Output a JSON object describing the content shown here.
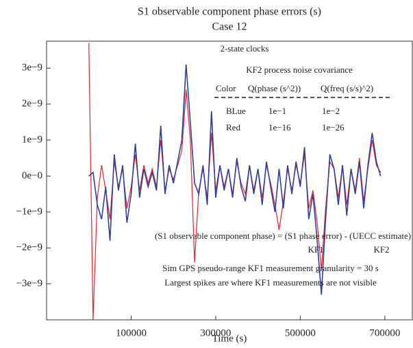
{
  "chart_data": {
    "type": "line",
    "title": "S1 observable component phase errors (s)",
    "subtitle": "Case 12",
    "x_label": "Time (s)",
    "xlim": [
      -100000,
      765000
    ],
    "xticks": [
      100000,
      300000,
      500000,
      700000
    ],
    "ylim": [
      -4e-09,
      3.75e-09
    ],
    "yticks": [
      {
        "value": 3e-09,
        "label": "3e−9"
      },
      {
        "value": 2e-09,
        "label": "2e−9"
      },
      {
        "value": 1e-09,
        "label": "1e−9"
      },
      {
        "value": 0,
        "label": "0e−0"
      },
      {
        "value": -1e-09,
        "label": "−1e−9"
      },
      {
        "value": -2e-09,
        "label": "−2e−9"
      },
      {
        "value": -3e-09,
        "label": "−3e−9"
      }
    ],
    "x": [
      0,
      10000,
      20000,
      30000,
      40000,
      50000,
      60000,
      70000,
      80000,
      90000,
      100000,
      110000,
      120000,
      130000,
      140000,
      150000,
      160000,
      170000,
      180000,
      190000,
      200000,
      210000,
      220000,
      230000,
      240000,
      250000,
      260000,
      270000,
      280000,
      290000,
      300000,
      310000,
      320000,
      330000,
      340000,
      350000,
      360000,
      370000,
      380000,
      390000,
      400000,
      410000,
      420000,
      430000,
      440000,
      450000,
      460000,
      470000,
      480000,
      490000,
      500000,
      510000,
      520000,
      530000,
      540000,
      550000,
      560000,
      570000,
      580000,
      590000,
      600000,
      610000,
      620000,
      630000,
      640000,
      650000,
      660000,
      670000,
      680000,
      690000
    ],
    "series": [
      {
        "name": "Red",
        "color": "#e8202a",
        "values": [
          3.7e-09,
          -4e-09,
          -6e-10,
          3e-10,
          -4e-10,
          -1.2e-09,
          4e-10,
          -3e-10,
          2e-10,
          -9e-10,
          -3e-10,
          6e-10,
          -4e-10,
          3e-10,
          -2e-10,
          2e-10,
          -3e-10,
          1e-09,
          -4e-10,
          2e-10,
          -1e-10,
          3e-10,
          7e-10,
          2.4e-09,
          1e-09,
          -2.4e-09,
          -4e-10,
          2e-10,
          -6e-10,
          1.2e-09,
          -4e-10,
          3e-10,
          -3e-10,
          2e-10,
          -5e-10,
          4e-10,
          -2e-10,
          -5e-10,
          3e-10,
          -4e-10,
          2e-10,
          -6e-10,
          3e-10,
          -2e-10,
          -8e-10,
          -1.5e-09,
          -7e-10,
          2e-10,
          -4e-10,
          3e-10,
          -2e-10,
          6e-10,
          -9e-10,
          -4e-10,
          -1.3e-09,
          -2.6e-09,
          -9e-10,
          4e-10,
          2e-10,
          -6e-10,
          3e-10,
          -8e-10,
          2e-10,
          -4e-10,
          5e-10,
          -7e-10,
          2e-10,
          1e-09,
          3e-10,
          1e-10
        ]
      },
      {
        "name": "BLue",
        "color": "#2e3f9e",
        "values": [
          0,
          1e-10,
          -8e-10,
          -1.2e-09,
          -3e-10,
          -1.8e-09,
          6e-10,
          -4e-10,
          3e-10,
          -1.3e-09,
          -5e-10,
          9e-10,
          -6e-10,
          2e-10,
          -3e-10,
          1e-10,
          -4e-10,
          1.4e-09,
          -5e-10,
          3e-10,
          -2e-10,
          4e-10,
          1e-09,
          3.1e-09,
          1.5e-09,
          -2e-10,
          -5e-10,
          3e-10,
          -8e-10,
          1.8e-09,
          -6e-10,
          3e-10,
          -4e-10,
          2e-10,
          -6e-10,
          5e-10,
          -3e-10,
          -7e-10,
          3e-10,
          -5e-10,
          2e-10,
          -8e-10,
          4e-10,
          -3e-10,
          -1e-09,
          2e-10,
          -9e-10,
          3e-10,
          -5e-10,
          4e-10,
          -3e-10,
          8e-10,
          -1.2e-09,
          -5e-10,
          -1.8e-09,
          -3.3e-09,
          -1.2e-09,
          6e-10,
          2e-10,
          -8e-10,
          3e-10,
          -1.1e-09,
          2e-10,
          -5e-10,
          4e-10,
          -9e-10,
          3e-10,
          1.2e-09,
          4e-10,
          0
        ]
      }
    ],
    "annotations": [
      "2-state clocks",
      "KF2 process noise covariance",
      "Color",
      "Q(phase (s^2))",
      "Q(freq (s/s)^2)",
      "1e−1",
      "1e−2",
      "1e−16",
      "1e−26",
      "(S1 observable component phase) = (S1 phase error) - (UECC estimate)",
      "KF1",
      "KF2",
      "Sim GPS pseudo-range KF1 measurement granularity = 30 s",
      "Largest spikes are where KF1 measurements are not visible"
    ]
  }
}
